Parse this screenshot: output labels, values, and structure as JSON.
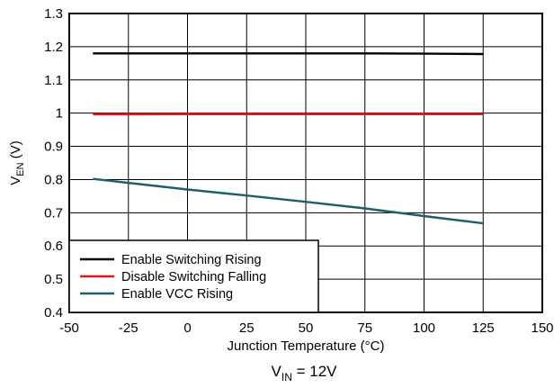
{
  "chart_data": {
    "type": "line",
    "xlabel": "Junction Temperature (°C)",
    "ylabel": {
      "main": "V",
      "sub": "EN",
      "unit": " (V)"
    },
    "caption": {
      "main": "V",
      "sub": "IN",
      "rest": " = 12V"
    },
    "xlim": [
      -50,
      150
    ],
    "ylim": [
      0.4,
      1.3
    ],
    "xticks": [
      -50,
      -25,
      0,
      25,
      50,
      75,
      100,
      125,
      150
    ],
    "xtick_labels": [
      "-50",
      "-25",
      "0",
      "25",
      "50",
      "75",
      "100",
      "125",
      "150"
    ],
    "yticks": [
      0.4,
      0.5,
      0.6,
      0.7,
      0.8,
      0.9,
      1.0,
      1.1,
      1.2,
      1.3
    ],
    "ytick_labels": [
      "0.4",
      "0.5",
      "0.6",
      "0.7",
      "0.8",
      "0.9",
      "1",
      "1.1",
      "1.2",
      "1.3"
    ],
    "grid": true,
    "legend_position": "bottom-left",
    "series": [
      {
        "name": "Enable Switching Rising",
        "color": "#000000",
        "x": [
          -40,
          0,
          25,
          50,
          75,
          100,
          125
        ],
        "y": [
          1.18,
          1.18,
          1.18,
          1.18,
          1.18,
          1.179,
          1.178
        ]
      },
      {
        "name": "Disable Switching Falling",
        "color": "#e8141c",
        "x": [
          -40,
          0,
          25,
          50,
          75,
          100,
          125
        ],
        "y": [
          0.996,
          0.997,
          0.997,
          0.997,
          0.997,
          0.997,
          0.997
        ]
      },
      {
        "name": "Enable VCC Rising",
        "color": "#1e5f6e",
        "x": [
          -40,
          0,
          25,
          50,
          75,
          100,
          125
        ],
        "y": [
          0.802,
          0.77,
          0.752,
          0.733,
          0.713,
          0.69,
          0.668
        ]
      }
    ]
  }
}
